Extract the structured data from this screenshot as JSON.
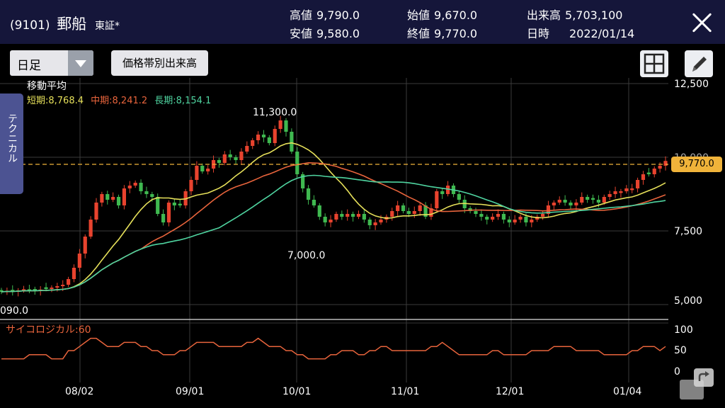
{
  "header": {
    "code": "(9101)",
    "name": "郵船",
    "market": "東証*",
    "stats": [
      {
        "k": "高値",
        "v": "9,790.0"
      },
      {
        "k": "安値",
        "v": "9,580.0"
      },
      {
        "k": "始値",
        "v": "9,670.0"
      },
      {
        "k": "終値",
        "v": "9,770.0"
      },
      {
        "k": "出来高",
        "v": "5,703,100"
      },
      {
        "k": "日時",
        "v": "2022/01/14"
      }
    ]
  },
  "toolbar": {
    "period": "日足",
    "volume_profile": "価格帯別出来高"
  },
  "side_tab": "テクニカル",
  "ma": {
    "title": "移動平均",
    "short_label": "短期:8,768.4",
    "mid_label": "中期:8,241.2",
    "long_label": "長期:8,154.1",
    "colors": {
      "short": "#e6e05a",
      "mid": "#e8643c",
      "long": "#4fd4a0"
    }
  },
  "psy": {
    "label": "サイコロジカル:60"
  },
  "annotations": {
    "high": "11,300.0",
    "low": "7,000.0",
    "left": "090.0"
  },
  "current_price": "9,770.0",
  "chart_data": {
    "type": "candlestick",
    "x_ticks": [
      "08/02",
      "09/01",
      "10/01",
      "11/01",
      "12/01",
      "01/04"
    ],
    "y_ticks": [
      "12,500",
      "10,000",
      "7,500",
      "5,000"
    ],
    "psy_ticks": [
      "100",
      "50",
      "0"
    ],
    "ylim": [
      4700,
      12500
    ],
    "series_close": [
      5150,
      5180,
      5160,
      5200,
      5240,
      5210,
      5190,
      5230,
      5250,
      5300,
      5350,
      5400,
      5600,
      6000,
      6500,
      7100,
      7700,
      8300,
      8600,
      8400,
      8500,
      8200,
      8800,
      8900,
      9000,
      8700,
      8600,
      8500,
      7900,
      7600,
      8300,
      8200,
      8200,
      8700,
      9100,
      9600,
      9400,
      9500,
      9800,
      9700,
      10000,
      9900,
      9800,
      10100,
      10300,
      10500,
      10700,
      10600,
      10400,
      10900,
      11200,
      10800,
      10100,
      9300,
      8800,
      8400,
      8200,
      7800,
      7600,
      7700,
      7900,
      7800,
      7900,
      7800,
      7900,
      7700,
      7500,
      7600,
      7700,
      7800,
      8000,
      8200,
      8000,
      7900,
      8000,
      8200,
      7800,
      8100,
      8700,
      8600,
      8900,
      8600,
      8400,
      8100,
      8000,
      7900,
      7800,
      7700,
      7800,
      7900,
      7700,
      7600,
      7700,
      7800,
      7600,
      7700,
      7800,
      7900,
      8200,
      8300,
      8400,
      8300,
      8200,
      8300,
      8500,
      8400,
      8400,
      8300,
      8500,
      8600,
      8700,
      8700,
      8800,
      8800,
      9100,
      9300,
      9300,
      9500,
      9600,
      9770
    ],
    "psy_values": [
      30,
      30,
      30,
      30,
      30,
      40,
      40,
      40,
      40,
      30,
      30,
      30,
      50,
      50,
      60,
      70,
      80,
      80,
      70,
      60,
      60,
      60,
      70,
      70,
      70,
      60,
      60,
      50,
      50,
      40,
      40,
      40,
      50,
      50,
      60,
      70,
      70,
      70,
      70,
      60,
      60,
      60,
      60,
      60,
      70,
      70,
      80,
      70,
      60,
      60,
      60,
      50,
      50,
      40,
      40,
      30,
      30,
      30,
      30,
      40,
      40,
      50,
      50,
      50,
      40,
      40,
      50,
      50,
      60,
      60,
      50,
      50,
      50,
      50,
      50,
      50,
      50,
      60,
      60,
      70,
      60,
      50,
      40,
      40,
      40,
      40,
      40,
      40,
      50,
      50,
      40,
      40,
      40,
      40,
      40,
      50,
      50,
      50,
      50,
      60,
      60,
      60,
      60,
      50,
      50,
      50,
      50,
      50,
      40,
      40,
      40,
      40,
      40,
      50,
      50,
      60,
      60,
      60,
      50,
      60
    ]
  }
}
